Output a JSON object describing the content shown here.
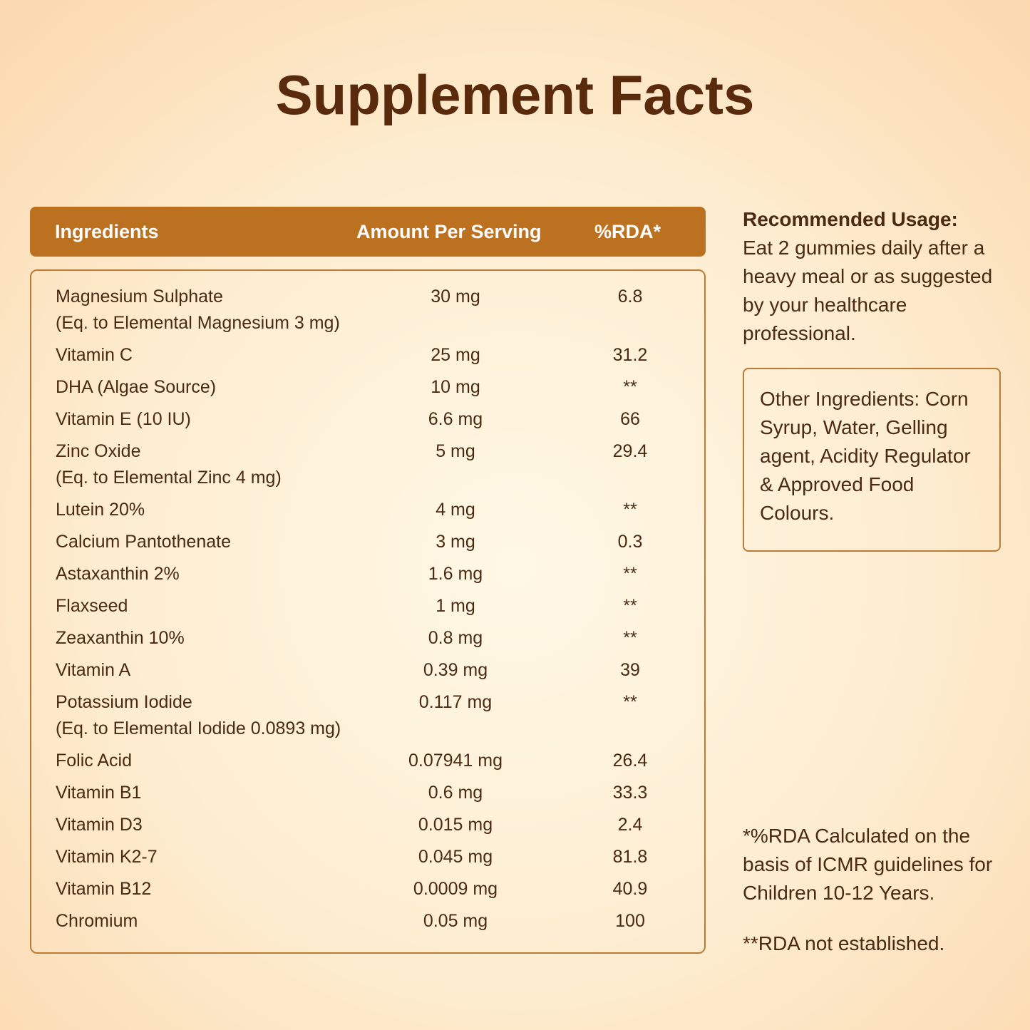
{
  "title": "Supplement Facts",
  "table": {
    "header": [
      "Ingredients",
      "Amount Per Serving",
      "%RDA*"
    ],
    "rows": [
      [
        [
          "Magnesium Sulphate",
          "(Eq. to Elemental Magnesium 3 mg)"
        ],
        "30 mg",
        "6.8"
      ],
      [
        [
          "Vitamin C"
        ],
        "25 mg",
        "31.2"
      ],
      [
        [
          "DHA (Algae Source)"
        ],
        "10 mg",
        "**"
      ],
      [
        [
          "Vitamin E (10 IU)"
        ],
        "6.6 mg",
        "66"
      ],
      [
        [
          "Zinc Oxide",
          "(Eq. to Elemental Zinc 4 mg)"
        ],
        "5 mg",
        "29.4"
      ],
      [
        [
          "Lutein 20%"
        ],
        "4 mg",
        "**"
      ],
      [
        [
          "Calcium Pantothenate"
        ],
        "3 mg",
        "0.3"
      ],
      [
        [
          "Astaxanthin 2%"
        ],
        "1.6 mg",
        "**"
      ],
      [
        [
          "Flaxseed"
        ],
        "1 mg",
        "**"
      ],
      [
        [
          "Zeaxanthin 10%"
        ],
        "0.8 mg",
        "**"
      ],
      [
        [
          "Vitamin A"
        ],
        "0.39 mg",
        "39"
      ],
      [
        [
          "Potassium Iodide",
          "(Eq. to Elemental Iodide 0.0893 mg)"
        ],
        "0.117 mg",
        "**"
      ],
      [
        [
          "Folic Acid"
        ],
        "0.07941 mg",
        "26.4"
      ],
      [
        [
          "Vitamin B1"
        ],
        "0.6 mg",
        "33.3"
      ],
      [
        [
          "Vitamin D3"
        ],
        "0.015 mg",
        "2.4"
      ],
      [
        [
          "Vitamin K2-7"
        ],
        "0.045 mg",
        "81.8"
      ],
      [
        [
          "Vitamin B12"
        ],
        "0.0009 mg",
        "40.9"
      ],
      [
        [
          "Chromium"
        ],
        "0.05 mg",
        "100"
      ]
    ]
  },
  "usage": {
    "heading": "Recommended Usage:",
    "text": "Eat 2 gummies daily after a heavy meal or as suggested by your healthcare professional."
  },
  "other_ingredients": "Other Ingredients: Corn Syrup, Water, Gelling agent, Acidity Regulator & Approved Food Colours.",
  "footnotes": [
    "*%RDA Calculated on the basis of ICMR guidelines for Children 10-12 Years.",
    "**RDA not established."
  ]
}
